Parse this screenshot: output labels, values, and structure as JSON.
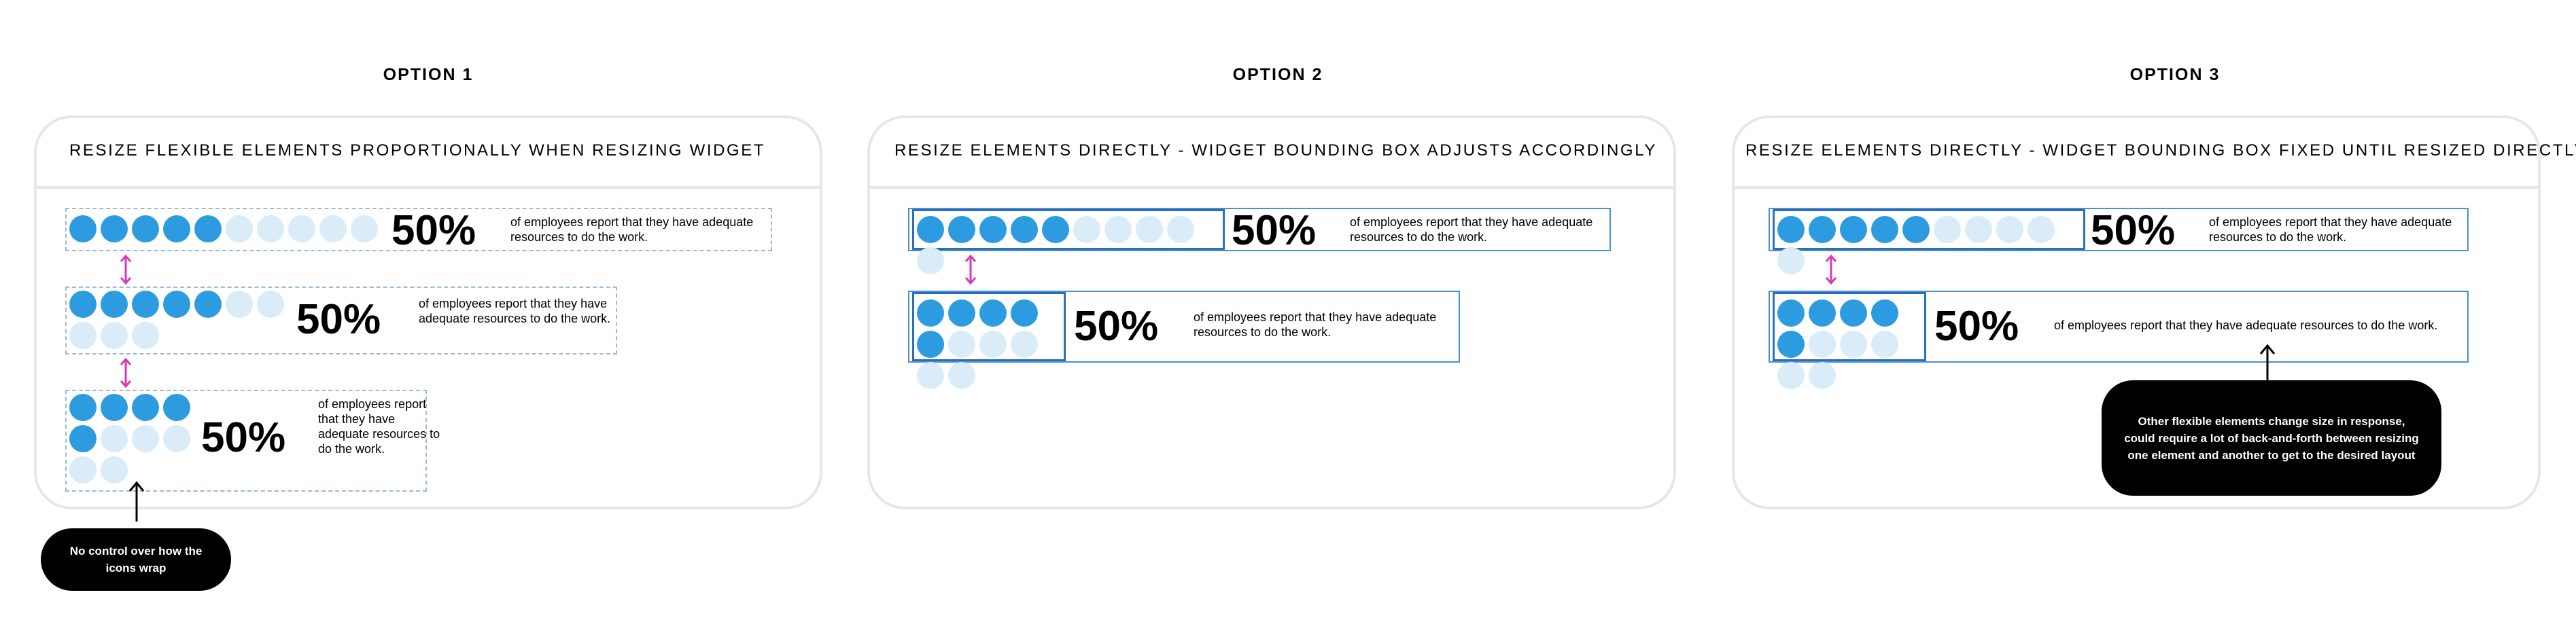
{
  "headings": [
    "OPTION 1",
    "OPTION 2",
    "OPTION 3"
  ],
  "panels": [
    {
      "title": "RESIZE FLEXIBLE ELEMENTS PROPORTIONALLY WHEN RESIZING WIDGET"
    },
    {
      "title": "RESIZE ELEMENTS DIRECTLY - WIDGET BOUNDING BOX ADJUSTS ACCORDINGLY"
    },
    {
      "title": "RESIZE ELEMENTS DIRECTLY - WIDGET BOUNDING BOX FIXED UNTIL RESIZED DIRECTLY"
    }
  ],
  "widget": {
    "percent": "50%",
    "description": "of employees report that they have adequate resources to do the work.",
    "filled_icons": 5,
    "total_icons": 10
  },
  "callouts": {
    "option1": "No control over how the icons wrap",
    "option3": "Other flexible elements change size in response, could require a lot of  back-and-forth between resizing one element and another to get to the desired layout"
  },
  "colors": {
    "filled_icon": "#2d9be0",
    "empty_icon": "#d9ecf8",
    "resize_arrow": "#d63ab8",
    "frame": "#4a90d9",
    "panel_border": "#e6e6e6"
  }
}
